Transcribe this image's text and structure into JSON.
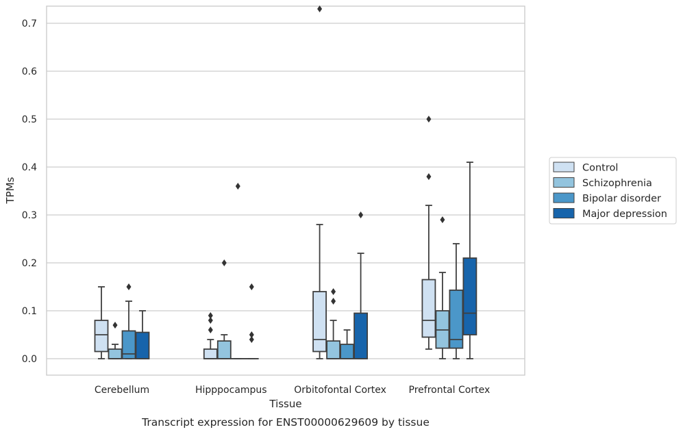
{
  "chart_data": {
    "type": "box",
    "xlabel": "Tissue",
    "ylabel": "TPMs",
    "caption": "Transcript expression for ENST00000629609 by tissue",
    "ylim": [
      -0.035,
      0.765
    ],
    "yticks": [
      "0.0",
      "0.1",
      "0.2",
      "0.3",
      "0.4",
      "0.5",
      "0.6",
      "0.7"
    ],
    "grid": "horizontal",
    "legend_position": "right",
    "categories": [
      "Cerebellum",
      "Hipppocampus",
      "Orbitofontal Cortex",
      "Prefrontal Cortex"
    ],
    "series": [
      {
        "name": "Control",
        "color": "#cfe1f2",
        "boxes": [
          {
            "q1": 0.015,
            "median": 0.05,
            "q3": 0.08,
            "whislo": 0.0,
            "whishi": 0.15,
            "fliers": []
          },
          {
            "q1": 0.0,
            "median": 0.0,
            "q3": 0.02,
            "whislo": 0.0,
            "whishi": 0.04,
            "fliers": [
              0.06,
              0.08,
              0.09
            ]
          },
          {
            "q1": 0.015,
            "median": 0.04,
            "q3": 0.14,
            "whislo": 0.0,
            "whishi": 0.28,
            "fliers": [
              0.73
            ]
          },
          {
            "q1": 0.045,
            "median": 0.08,
            "q3": 0.165,
            "whislo": 0.02,
            "whishi": 0.32,
            "fliers": [
              0.38,
              0.5
            ]
          }
        ]
      },
      {
        "name": "Schizophrenia",
        "color": "#93c4de",
        "boxes": [
          {
            "q1": 0.0,
            "median": 0.0,
            "q3": 0.02,
            "whislo": 0.0,
            "whishi": 0.03,
            "fliers": [
              0.07
            ]
          },
          {
            "q1": 0.0,
            "median": 0.0,
            "q3": 0.037,
            "whislo": 0.0,
            "whishi": 0.05,
            "fliers": [
              0.2
            ]
          },
          {
            "q1": 0.0,
            "median": 0.0,
            "q3": 0.037,
            "whislo": 0.0,
            "whishi": 0.08,
            "fliers": [
              0.12,
              0.14
            ]
          },
          {
            "q1": 0.022,
            "median": 0.06,
            "q3": 0.1,
            "whislo": 0.0,
            "whishi": 0.18,
            "fliers": [
              0.29
            ]
          }
        ]
      },
      {
        "name": "Bipolar disorder",
        "color": "#4b97c9",
        "boxes": [
          {
            "q1": 0.0,
            "median": 0.01,
            "q3": 0.058,
            "whislo": 0.0,
            "whishi": 0.12,
            "fliers": [
              0.15
            ]
          },
          {
            "q1": 0.0,
            "median": 0.0,
            "q3": 0.0,
            "whislo": 0.0,
            "whishi": 0.0,
            "fliers": [
              0.36
            ]
          },
          {
            "q1": 0.0,
            "median": 0.0,
            "q3": 0.03,
            "whislo": 0.0,
            "whishi": 0.06,
            "fliers": []
          },
          {
            "q1": 0.022,
            "median": 0.04,
            "q3": 0.143,
            "whislo": 0.0,
            "whishi": 0.24,
            "fliers": []
          }
        ]
      },
      {
        "name": "Major depression",
        "color": "#1764ab",
        "boxes": [
          {
            "q1": 0.0,
            "median": 0.0,
            "q3": 0.055,
            "whislo": 0.0,
            "whishi": 0.1,
            "fliers": []
          },
          {
            "q1": 0.0,
            "median": 0.0,
            "q3": 0.0,
            "whislo": 0.0,
            "whishi": 0.0,
            "fliers": [
              0.04,
              0.05,
              0.15
            ]
          },
          {
            "q1": 0.0,
            "median": 0.0,
            "q3": 0.095,
            "whislo": 0.0,
            "whishi": 0.22,
            "fliers": [
              0.3
            ]
          },
          {
            "q1": 0.05,
            "median": 0.095,
            "q3": 0.21,
            "whislo": 0.0,
            "whishi": 0.41,
            "fliers": []
          }
        ]
      }
    ],
    "colors": {
      "grid": "#cccccc",
      "frame": "#cccccc",
      "box_edge": "#3f3f3f",
      "flier": "#333333",
      "legend_border": "#cccccc"
    }
  }
}
